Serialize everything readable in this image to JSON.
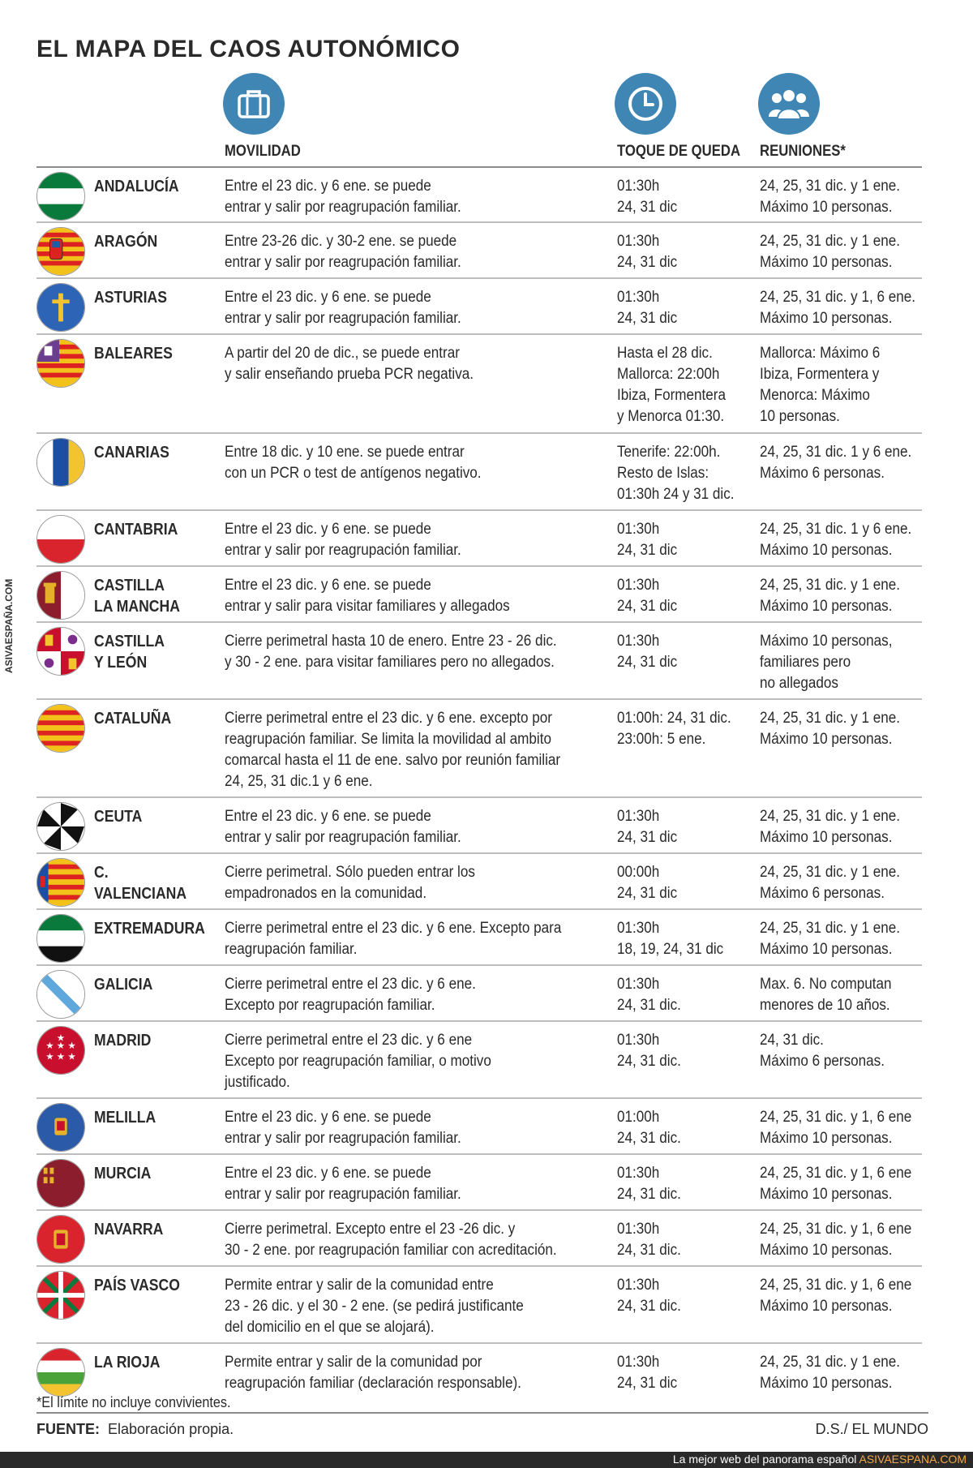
{
  "title": "EL MAPA DEL CAOS AUTONÓMICO",
  "icons": {
    "mobility": "suitcase-icon",
    "curfew": "clock-icon",
    "meetings": "people-icon",
    "accent": "#3f86b5"
  },
  "columns": {
    "mobility": "MOVILIDAD",
    "curfew": "TOQUE DE QUEDA",
    "meetings": "REUNIONES*"
  },
  "side_credit": "ASIVAESPAÑA.COM",
  "rows": [
    {
      "name": "ANDALUCÍA",
      "flag": "andalucia",
      "mobility": "Entre el 23 dic. y 6 ene. se puede\nentrar y salir por reagrupación familiar.",
      "curfew": "01:30h\n24, 31 dic",
      "meetings": "24, 25, 31 dic. y 1 ene.\nMáximo 10 personas."
    },
    {
      "name": "ARAGÓN",
      "flag": "aragon",
      "mobility": "Entre 23-26 dic. y 30-2 ene. se puede\nentrar y salir por reagrupación familiar.",
      "curfew": "01:30h\n24, 31 dic",
      "meetings": "24, 25, 31 dic. y 1 ene.\nMáximo 10 personas."
    },
    {
      "name": "ASTURIAS",
      "flag": "asturias",
      "mobility": "Entre el 23 dic. y 6 ene. se puede\nentrar y salir por reagrupación familiar.",
      "curfew": "01:30h\n24, 31 dic",
      "meetings": "24, 25, 31 dic. y 1, 6 ene.\nMáximo 10 personas."
    },
    {
      "name": "BALEARES",
      "flag": "baleares",
      "mobility": "A partir del 20 de dic., se puede entrar\ny salir enseñando prueba PCR negativa.",
      "curfew": "Hasta el 28 dic.\nMallorca: 22:00h\nIbiza, Formentera\ny Menorca 01:30.",
      "meetings": "Mallorca: Máximo 6\nIbiza, Formentera y\nMenorca: Máximo\n10 personas."
    },
    {
      "name": "CANARIAS",
      "flag": "canarias",
      "mobility": "Entre 18 dic. y 10 ene. se puede entrar\ncon un PCR o test de antígenos negativo.",
      "curfew": "Tenerife: 22:00h.\nResto de Islas:\n01:30h 24 y 31 dic.",
      "meetings": "24, 25, 31 dic. 1 y 6 ene.\nMáximo 6 personas."
    },
    {
      "name": "CANTABRIA",
      "flag": "cantabria",
      "mobility": "Entre el 23 dic. y 6 ene. se puede\nentrar y salir por reagrupación familiar.",
      "curfew": "01:30h\n24, 31 dic",
      "meetings": "24, 25, 31 dic. 1 y 6 ene.\nMáximo 10 personas."
    },
    {
      "name": "CASTILLA\nLA MANCHA",
      "flag": "clm",
      "mobility": "Entre el 23 dic. y 6 ene. se puede\nentrar y salir para visitar familiares y allegados",
      "curfew": "01:30h\n24, 31 dic",
      "meetings": "24, 25, 31 dic. y 1 ene.\nMáximo 10 personas."
    },
    {
      "name": "CASTILLA\nY LEÓN",
      "flag": "cyl",
      "mobility": "Cierre perimetral hasta 10 de enero. Entre 23 - 26 dic.\ny 30 - 2 ene. para visitar familiares pero no allegados.",
      "curfew": "01:30h\n24, 31 dic",
      "meetings": "Máximo 10 personas,\nfamiliares pero\nno allegados"
    },
    {
      "name": "CATALUÑA",
      "flag": "cataluna",
      "mobility": "Cierre perimetral entre el 23 dic. y 6 ene. excepto por\nreagrupación familiar. Se limita la movilidad al ambito\ncomarcal hasta el 11 de ene. salvo por reunión familiar\n24, 25, 31 dic.1 y 6 ene.",
      "curfew": "01:00h: 24, 31 dic.\n23:00h: 5 ene.",
      "meetings": "24, 25, 31 dic. y 1 ene.\nMáximo 10 personas."
    },
    {
      "name": "CEUTA",
      "flag": "ceuta",
      "mobility": "Entre el 23 dic. y 6 ene. se puede\nentrar y salir por reagrupación familiar.",
      "curfew": "01:30h\n24, 31 dic",
      "meetings": "24, 25, 31 dic. y 1 ene.\nMáximo 10 personas."
    },
    {
      "name": "C. VALENCIANA",
      "flag": "valencia",
      "mobility": "Cierre perimetral. Sólo pueden entrar los\nempadronados en la comunidad.",
      "curfew": "00:00h\n24, 31 dic",
      "meetings": "24, 25, 31 dic. y 1 ene.\nMáximo 6 personas."
    },
    {
      "name": "EXTREMADURA",
      "flag": "extremadura",
      "mobility": "Cierre perimetral entre el 23 dic. y 6 ene. Excepto para\nreagrupación familiar.",
      "curfew": "01:30h\n18, 19, 24, 31 dic",
      "meetings": "24, 25, 31 dic. y 1 ene.\nMáximo 10 personas."
    },
    {
      "name": "GALICIA",
      "flag": "galicia",
      "mobility": "Cierre perimetral entre el 23 dic. y 6 ene.\nExcepto por reagrupación familiar.",
      "curfew": "01:30h\n24, 31 dic.",
      "meetings": "Max. 6. No computan\nmenores de 10 años."
    },
    {
      "name": "MADRID",
      "flag": "madrid",
      "mobility": "Cierre perimetral entre el 23 dic. y 6 ene\nExcepto por reagrupación familiar, o motivo\njustificado.",
      "curfew": "01:30h\n24, 31 dic.",
      "meetings": "24, 31 dic.\nMáximo 6 personas."
    },
    {
      "name": "MELILLA",
      "flag": "melilla",
      "mobility": "Entre el 23 dic. y 6 ene. se puede\nentrar y salir por reagrupación familiar.",
      "curfew": "01:00h\n24, 31 dic.",
      "meetings": "24, 25, 31 dic. y 1, 6 ene\nMáximo 10 personas."
    },
    {
      "name": "MURCIA",
      "flag": "murcia",
      "mobility": "Entre el 23 dic. y 6 ene. se puede\nentrar y salir por reagrupación familiar.",
      "curfew": "01:30h\n24, 31 dic.",
      "meetings": "24, 25, 31 dic. y 1, 6 ene\nMáximo 10 personas."
    },
    {
      "name": "NAVARRA",
      "flag": "navarra",
      "mobility": "Cierre perimetral. Excepto entre el 23 -26 dic. y\n30 - 2 ene. por reagrupación familiar con acreditación.",
      "curfew": "01:30h\n24, 31 dic.",
      "meetings": "24, 25, 31 dic. y 1, 6 ene\nMáximo 10 personas."
    },
    {
      "name": "PAÍS VASCO",
      "flag": "paisvasco",
      "mobility": "Permite entrar y salir de la comunidad entre\n23 - 26 dic. y el 30 - 2 ene. (se pedirá justificante\ndel domicilio en el que se alojará).",
      "curfew": "01:30h\n24, 31 dic.",
      "meetings": "24, 25, 31 dic. y 1, 6 ene\nMáximo 10 personas."
    },
    {
      "name": "LA RIOJA",
      "flag": "rioja",
      "mobility": "Permite entrar y salir de la comunidad por\nreagrupación familiar (declaración responsable).",
      "curfew": "01:30h\n24, 31 dic",
      "meetings": "24, 25, 31 dic. y 1 ene.\nMáximo 10 personas."
    }
  ],
  "footnote": "*El límite no incluye convivientes.",
  "source_label": "FUENTE:",
  "source_text": "Elaboración propia.",
  "credit": "D.S./ EL MUNDO",
  "bottom_bar": {
    "text": "La mejor web del panorama español",
    "site": "ASIVAESPANA.COM"
  }
}
